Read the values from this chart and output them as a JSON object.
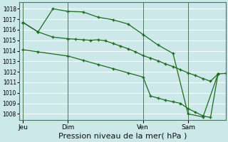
{
  "bg_color": "#cce8e8",
  "grid_color": "#aacccc",
  "line_color": "#1a6b1a",
  "marker_color": "#1a6b1a",
  "xlabel": "Pression niveau de la mer( hPa )",
  "xlabel_fontsize": 8,
  "yticks": [
    1008,
    1009,
    1010,
    1011,
    1012,
    1013,
    1014,
    1015,
    1016,
    1017,
    1018
  ],
  "ylim": [
    1007.4,
    1018.6
  ],
  "xtick_labels": [
    "Jeu",
    "Dim",
    "Ven",
    "Sam"
  ],
  "xtick_positions": [
    0,
    24,
    64,
    88
  ],
  "xlim": [
    -2,
    108
  ],
  "series1_x": [
    0,
    8,
    16,
    24,
    28,
    32,
    36,
    40,
    44,
    48,
    52,
    56,
    60,
    64,
    68,
    72,
    76,
    80,
    84,
    88,
    92,
    96,
    100,
    104,
    108
  ],
  "series1_y": [
    1016.7,
    1015.8,
    1015.3,
    1015.15,
    1015.1,
    1015.05,
    1015.0,
    1015.05,
    1014.95,
    1014.7,
    1014.45,
    1014.2,
    1013.9,
    1013.55,
    1013.3,
    1013.05,
    1012.75,
    1012.5,
    1012.2,
    1011.9,
    1011.65,
    1011.35,
    1011.1,
    1011.8,
    1011.85
  ],
  "series2_x": [
    0,
    8,
    16,
    24,
    32,
    40,
    48,
    56,
    64,
    72,
    80,
    88,
    96,
    104
  ],
  "series2_y": [
    1016.7,
    1015.8,
    1018.0,
    1017.75,
    1017.7,
    1017.2,
    1016.95,
    1016.55,
    1015.55,
    1014.55,
    1013.75,
    1008.0,
    1007.7,
    1011.8
  ],
  "series3_x": [
    0,
    8,
    24,
    32,
    40,
    48,
    56,
    64,
    68,
    72,
    76,
    80,
    84,
    88,
    92,
    96,
    100,
    104
  ],
  "series3_y": [
    1014.1,
    1013.9,
    1013.5,
    1013.1,
    1012.7,
    1012.3,
    1011.9,
    1011.5,
    1009.7,
    1009.5,
    1009.3,
    1009.15,
    1009.0,
    1008.5,
    1008.15,
    1007.8,
    1007.65,
    1011.8
  ]
}
